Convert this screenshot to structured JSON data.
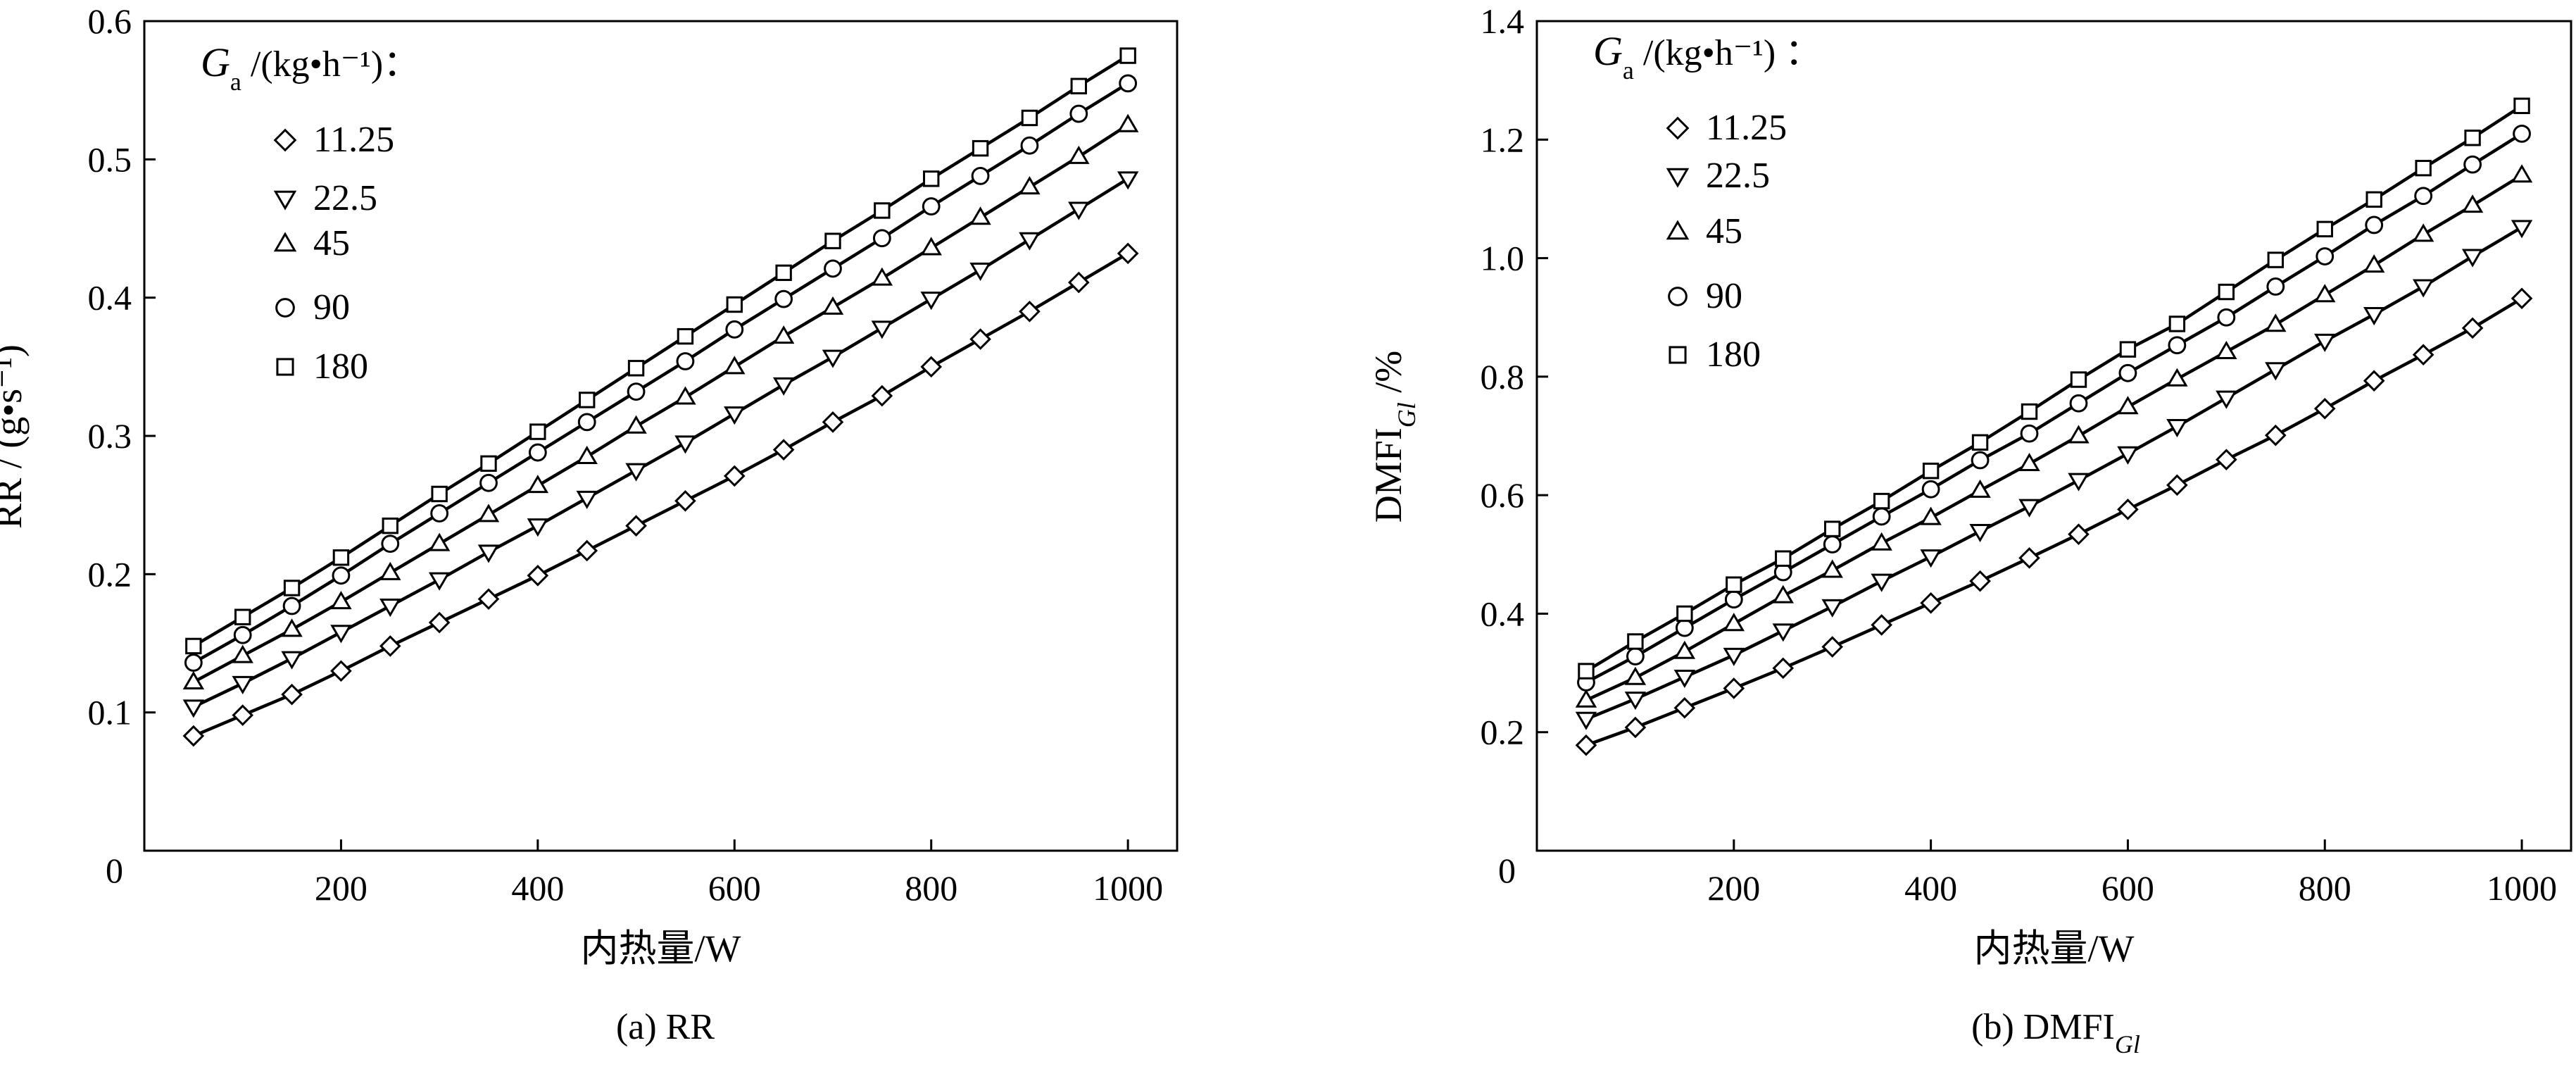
{
  "chart_data": [
    {
      "type": "line",
      "caption": "(a) RR",
      "xlabel": "内热量/W",
      "ylabel": "RR / (g•s⁻¹)",
      "xlim": [
        0,
        1050
      ],
      "ylim": [
        0,
        0.6
      ],
      "xticks": [
        "200",
        "400",
        "600",
        "800",
        "1000"
      ],
      "yticks": [
        "0.1",
        "0.2",
        "0.3",
        "0.4",
        "0.5",
        "0.6"
      ],
      "origin_label": "0",
      "grid": false,
      "legend_position": "top-left",
      "legend_title": {
        "var": "G",
        "sub": "a",
        "units": " /(kg•h⁻¹)："
      },
      "x": [
        50,
        100,
        150,
        200,
        250,
        300,
        350,
        400,
        450,
        500,
        550,
        600,
        650,
        700,
        750,
        800,
        850,
        900,
        950,
        1000
      ],
      "series": [
        {
          "name": "11.25",
          "marker": "diamond",
          "values": [
            0.083,
            0.098,
            0.113,
            0.13,
            0.148,
            0.165,
            0.182,
            0.199,
            0.217,
            0.235,
            0.253,
            0.271,
            0.29,
            0.31,
            0.329,
            0.35,
            0.37,
            0.39,
            0.411,
            0.432
          ]
        },
        {
          "name": "22.5",
          "marker": "triangle-down",
          "values": [
            0.104,
            0.121,
            0.139,
            0.158,
            0.177,
            0.196,
            0.216,
            0.235,
            0.255,
            0.275,
            0.295,
            0.316,
            0.337,
            0.357,
            0.378,
            0.399,
            0.42,
            0.442,
            0.464,
            0.486
          ]
        },
        {
          "name": "45",
          "marker": "triangle-up",
          "values": [
            0.122,
            0.141,
            0.16,
            0.18,
            0.201,
            0.222,
            0.243,
            0.264,
            0.285,
            0.307,
            0.328,
            0.35,
            0.372,
            0.393,
            0.414,
            0.436,
            0.458,
            0.48,
            0.502,
            0.525
          ]
        },
        {
          "name": "90",
          "marker": "circle",
          "values": [
            0.136,
            0.156,
            0.177,
            0.199,
            0.222,
            0.244,
            0.266,
            0.288,
            0.31,
            0.332,
            0.354,
            0.377,
            0.399,
            0.421,
            0.443,
            0.466,
            0.488,
            0.51,
            0.533,
            0.555
          ]
        },
        {
          "name": "180",
          "marker": "square",
          "values": [
            0.148,
            0.169,
            0.19,
            0.212,
            0.235,
            0.258,
            0.28,
            0.303,
            0.326,
            0.349,
            0.372,
            0.395,
            0.418,
            0.441,
            0.463,
            0.486,
            0.508,
            0.53,
            0.553,
            0.575
          ]
        }
      ]
    },
    {
      "type": "line",
      "caption": "(b) DMFI",
      "caption_sub": "Gl",
      "xlabel": "内热量/W",
      "ylabel": "DMFI",
      "ylabel_sub": "Gl",
      "ylabel_units": " /%",
      "xlim": [
        0,
        1050
      ],
      "ylim": [
        0,
        1.4
      ],
      "xticks": [
        "200",
        "400",
        "600",
        "800",
        "1000"
      ],
      "yticks": [
        "0.2",
        "0.4",
        "0.6",
        "0.8",
        "1.0",
        "1.2",
        "1.4"
      ],
      "origin_label": "0",
      "grid": false,
      "legend_position": "top-left",
      "legend_title": {
        "var": "G",
        "sub": "a",
        "units": " /(kg•h⁻¹) ："
      },
      "x": [
        50,
        100,
        150,
        200,
        250,
        300,
        350,
        400,
        450,
        500,
        550,
        600,
        650,
        700,
        750,
        800,
        850,
        900,
        950,
        1000
      ],
      "series": [
        {
          "name": "11.25",
          "marker": "diamond",
          "values": [
            0.178,
            0.208,
            0.241,
            0.274,
            0.308,
            0.344,
            0.381,
            0.418,
            0.455,
            0.494,
            0.534,
            0.576,
            0.617,
            0.66,
            0.701,
            0.746,
            0.793,
            0.837,
            0.882,
            0.932
          ]
        },
        {
          "name": "22.5",
          "marker": "triangle-down",
          "values": [
            0.222,
            0.256,
            0.293,
            0.33,
            0.371,
            0.412,
            0.455,
            0.496,
            0.539,
            0.581,
            0.625,
            0.67,
            0.716,
            0.764,
            0.812,
            0.86,
            0.905,
            0.952,
            1.003,
            1.052
          ]
        },
        {
          "name": "45",
          "marker": "triangle-up",
          "values": [
            0.254,
            0.292,
            0.336,
            0.383,
            0.43,
            0.473,
            0.519,
            0.562,
            0.608,
            0.653,
            0.7,
            0.749,
            0.796,
            0.842,
            0.888,
            0.938,
            0.988,
            1.04,
            1.089,
            1.14
          ]
        },
        {
          "name": "90",
          "marker": "circle",
          "values": [
            0.284,
            0.328,
            0.376,
            0.424,
            0.47,
            0.517,
            0.564,
            0.61,
            0.659,
            0.704,
            0.755,
            0.806,
            0.853,
            0.9,
            0.952,
            1.003,
            1.056,
            1.105,
            1.158,
            1.21
          ]
        },
        {
          "name": "180",
          "marker": "square",
          "values": [
            0.303,
            0.353,
            0.4,
            0.449,
            0.493,
            0.543,
            0.59,
            0.641,
            0.689,
            0.741,
            0.795,
            0.846,
            0.889,
            0.943,
            0.997,
            1.049,
            1.099,
            1.152,
            1.203,
            1.257
          ]
        }
      ]
    }
  ]
}
